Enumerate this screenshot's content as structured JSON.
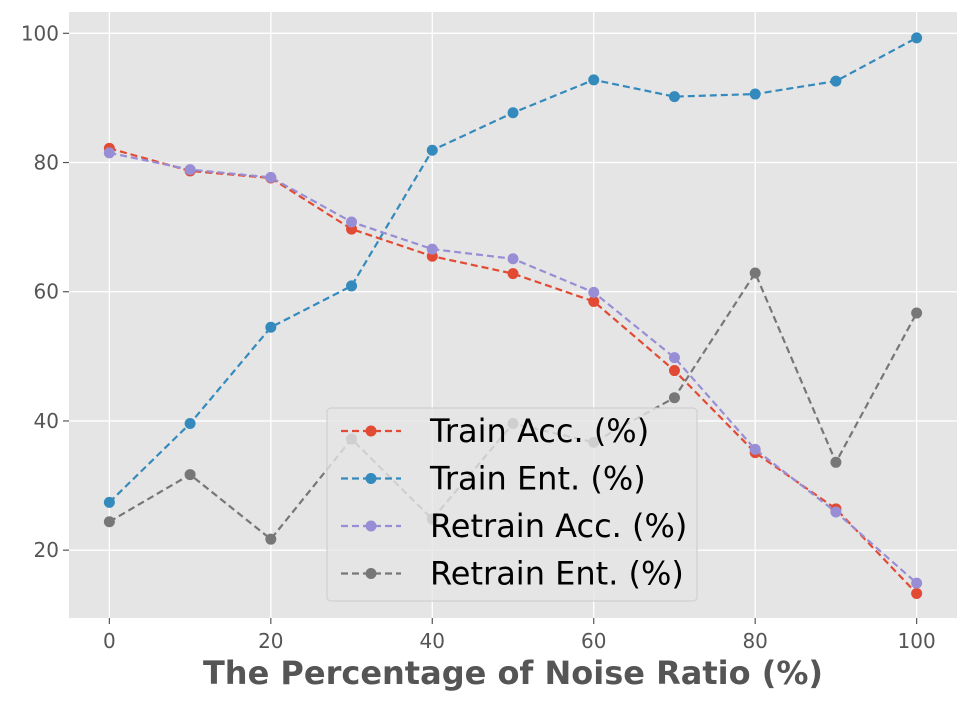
{
  "chart_data": {
    "type": "line",
    "title": "",
    "xlabel": "The Percentage of Noise Ratio (%)",
    "ylabel": "",
    "xlim": [
      -5,
      105
    ],
    "ylim": [
      9.5,
      103.3
    ],
    "x_ticks": [
      0,
      20,
      40,
      60,
      80,
      100
    ],
    "x_tick_labels": [
      "0",
      "20",
      "40",
      "60",
      "80",
      "100"
    ],
    "y_ticks": [
      20,
      40,
      60,
      80,
      100
    ],
    "y_tick_labels": [
      "20",
      "40",
      "60",
      "80",
      "100"
    ],
    "grid": true,
    "legend_position": "lower-center",
    "x": [
      0,
      10,
      20,
      30,
      40,
      50,
      60,
      70,
      80,
      90,
      100
    ],
    "series": [
      {
        "name": "Train Acc. (%)",
        "color": "#E24A33",
        "style": "dashed",
        "marker": "circle",
        "values": [
          82.2,
          78.7,
          77.6,
          69.7,
          65.5,
          62.8,
          58.5,
          47.8,
          35.1,
          26.4,
          13.3
        ]
      },
      {
        "name": "Train Ent. (%)",
        "color": "#348ABD",
        "style": "dashed",
        "marker": "circle",
        "values": [
          27.4,
          39.6,
          54.5,
          60.9,
          81.9,
          87.7,
          92.8,
          90.2,
          90.6,
          92.6,
          99.3
        ]
      },
      {
        "name": "Retrain Acc. (%)",
        "color": "#988ED5",
        "style": "dashed",
        "marker": "circle",
        "values": [
          81.5,
          78.9,
          77.7,
          70.8,
          66.6,
          65.1,
          59.9,
          49.8,
          35.6,
          25.9,
          14.9
        ]
      },
      {
        "name": "Retrain Ent. (%)",
        "color": "#777777",
        "style": "dashed",
        "marker": "circle",
        "values": [
          24.4,
          31.7,
          21.7,
          37.2,
          24.8,
          39.6,
          36.7,
          43.6,
          62.9,
          33.6,
          56.7
        ]
      }
    ]
  },
  "colors": {
    "plot_background": "#E5E5E5",
    "grid": "#FFFFFF",
    "tick_text": "#555555"
  }
}
